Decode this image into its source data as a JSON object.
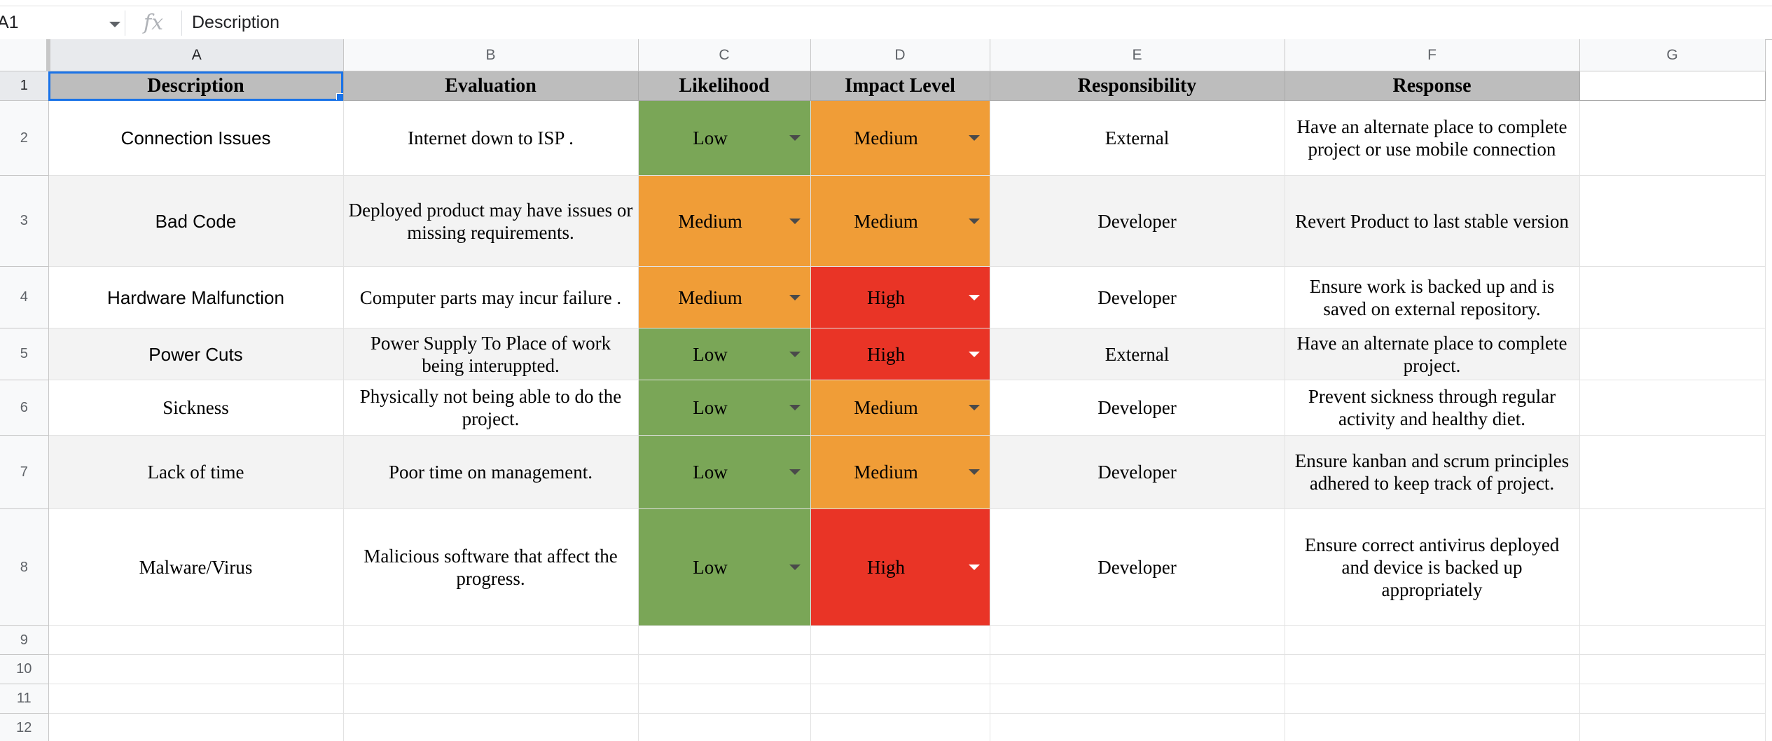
{
  "formula_bar": {
    "cell_ref": "A1",
    "fx_label": "fx",
    "value": "Description"
  },
  "columns": [
    "A",
    "B",
    "C",
    "D",
    "E",
    "F",
    "G"
  ],
  "row_numbers": [
    "1",
    "2",
    "3",
    "4",
    "5",
    "6",
    "7",
    "8",
    "9",
    "10",
    "11",
    "12"
  ],
  "sheet": {
    "headers": [
      "Description",
      "Evaluation",
      "Likelihood",
      "Impact Level",
      "Responsibility",
      "Response"
    ],
    "rows": [
      {
        "description": "Connection Issues",
        "evaluation": "Internet down to ISP .",
        "likelihood": "Low",
        "impact": "Medium",
        "responsibility": "External",
        "response": "Have an alternate place to complete project or use mobile connection"
      },
      {
        "description": "Bad Code",
        "evaluation": "Deployed product may have issues or missing requirements.",
        "likelihood": "Medium",
        "impact": "Medium",
        "responsibility": "Developer",
        "response": "Revert Product to last stable version"
      },
      {
        "description": "Hardware Malfunction",
        "evaluation": "Computer parts may incur failure .",
        "likelihood": "Medium",
        "impact": "High",
        "responsibility": "Developer",
        "response": "Ensure work is backed up and is saved on external repository."
      },
      {
        "description": "Power Cuts",
        "evaluation": "Power Supply To Place of work being interuppted.",
        "likelihood": "Low",
        "impact": "High",
        "responsibility": "External",
        "response": "Have an alternate place to complete project."
      },
      {
        "description": "Sickness",
        "evaluation": "Physically not being able to do the project.",
        "likelihood": "Low",
        "impact": "Medium",
        "responsibility": "Developer",
        "response": "Prevent sickness through regular activity and healthy diet."
      },
      {
        "description": "Lack of time",
        "evaluation": "Poor time on management.",
        "likelihood": "Low",
        "impact": "Medium",
        "responsibility": "Developer",
        "response": "Ensure kanban and scrum principles adhered to keep track of project."
      },
      {
        "description": "Malware/Virus",
        "evaluation": "Malicious software that affect the progress.",
        "likelihood": "Low",
        "impact": "High",
        "responsibility": "Developer",
        "response": "Ensure correct antivirus deployed and device is backed up appropriately"
      }
    ]
  },
  "level_colors": {
    "Low": "#7aa657",
    "Medium": "#f09d37",
    "High": "#e93426"
  },
  "header_fill": "#bdbdbd",
  "band_fill": "#f3f3f3",
  "selection_color": "#1a73e8"
}
